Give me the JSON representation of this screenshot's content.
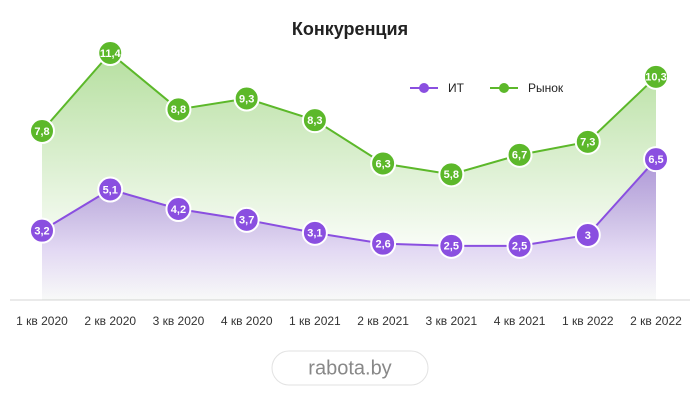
{
  "chart_data": {
    "type": "line",
    "title": "Конкуренция",
    "categories": [
      "1 кв 2020",
      "2 кв 2020",
      "3 кв 2020",
      "4 кв 2020",
      "1 кв 2021",
      "2 кв 2021",
      "3 кв 2021",
      "4 кв 2021",
      "1 кв 2022",
      "2 кв 2022"
    ],
    "series": [
      {
        "name": "ИТ",
        "color": "#8a4fe0",
        "values": [
          3.2,
          5.1,
          4.2,
          3.7,
          3.1,
          2.6,
          2.5,
          2.5,
          3,
          6.5
        ],
        "value_labels": [
          "3,2",
          "5,1",
          "4,2",
          "3,7",
          "3,1",
          "2,6",
          "2,5",
          "2,5",
          "3",
          "6,5"
        ]
      },
      {
        "name": "Рынок",
        "color": "#5cb82a",
        "values": [
          7.8,
          11.4,
          8.8,
          9.3,
          8.3,
          6.3,
          5.8,
          6.7,
          7.3,
          10.3
        ],
        "value_labels": [
          "7,8",
          "11,4",
          "8,8",
          "9,3",
          "8,3",
          "6,3",
          "5,8",
          "6,7",
          "7,3",
          "10,3"
        ]
      }
    ],
    "ylim": [
      0,
      12
    ],
    "legend": "top-right",
    "watermark": "rabota.by"
  }
}
